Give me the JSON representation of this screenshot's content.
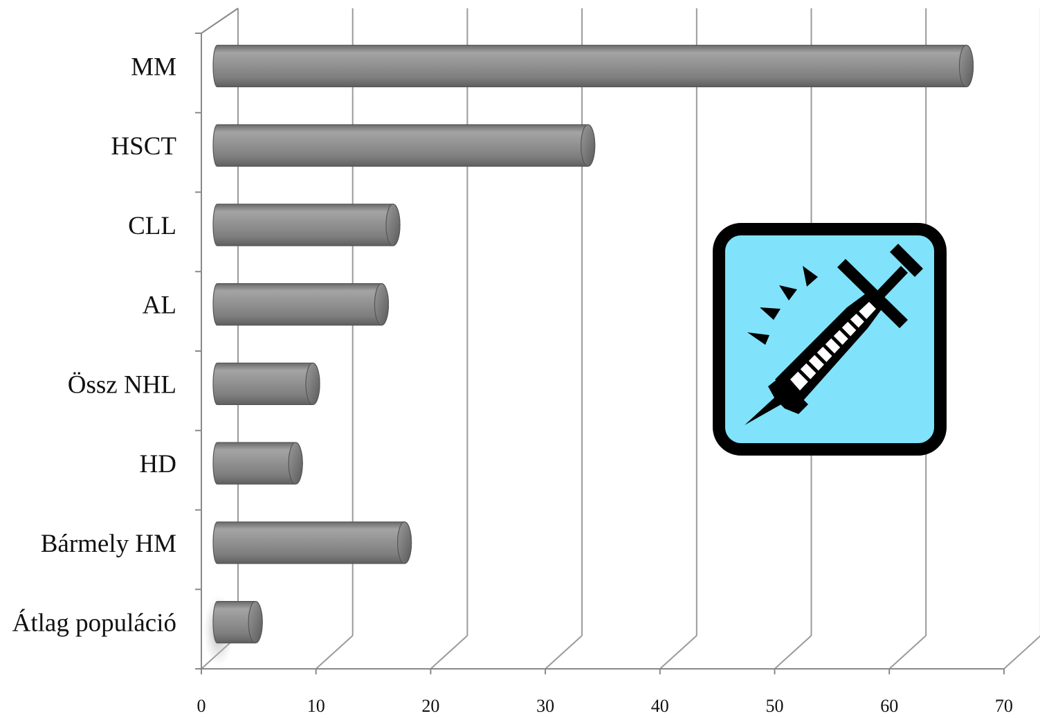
{
  "chart_data": {
    "type": "bar",
    "orientation": "horizontal",
    "style": "3d-cylinder",
    "categories": [
      "MM",
      "HSCT",
      "CLL",
      "AL",
      "Össz NHL",
      "HD",
      "Bármely HM",
      "Átlag populáció"
    ],
    "values": [
      64,
      31,
      14,
      13,
      7,
      5.5,
      15,
      2
    ],
    "xlim": [
      0,
      70
    ],
    "xticks": [
      "0",
      "10",
      "20",
      "30",
      "40",
      "50",
      "60",
      "70"
    ],
    "grid": true,
    "legend": "none",
    "title": "",
    "xlabel": "",
    "ylabel": "",
    "colors": {
      "bar": "#8c8c8c",
      "grid": "#9a9a9a",
      "axis": "#888888"
    }
  },
  "icon": {
    "name": "syringe-icon",
    "background": "#80e2fb",
    "border": "#000000"
  }
}
